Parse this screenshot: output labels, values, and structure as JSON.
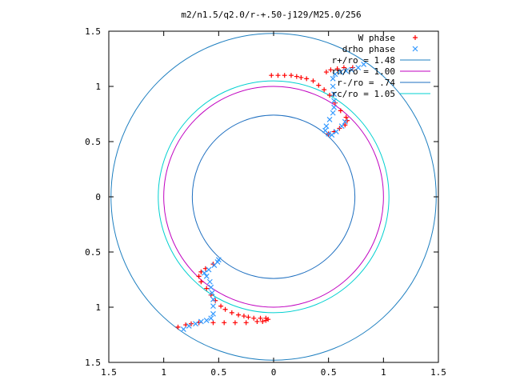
{
  "chart_data": {
    "type": "scatter",
    "title": "m2/n1.5/q2.0/r-+.50-j129/M25.0/256",
    "xlim": [
      -1.5,
      1.5
    ],
    "ylim": [
      -1.5,
      1.5
    ],
    "x_ticks": [
      -1.5,
      -1,
      -0.5,
      0,
      0.5,
      1,
      1.5
    ],
    "y_ticks": [
      -1.5,
      -1,
      -0.5,
      0,
      0.5,
      1,
      1.5
    ],
    "x_tick_labels": [
      "1.5",
      "1",
      "0.5",
      "0",
      "0.5",
      "1",
      "1.5"
    ],
    "y_tick_labels": [
      "1.5",
      "1",
      "0.5",
      "0",
      "0.5",
      "1",
      "1.5"
    ],
    "grid": false,
    "legend_position": "top-right",
    "series": [
      {
        "name": "W phase",
        "kind": "points",
        "marker": "plus",
        "color": "#ff0000",
        "points": [
          [
            -0.02,
            1.1
          ],
          [
            0.04,
            1.1
          ],
          [
            0.1,
            1.1
          ],
          [
            0.16,
            1.1
          ],
          [
            0.21,
            1.09
          ],
          [
            0.25,
            1.08
          ],
          [
            0.3,
            1.07
          ],
          [
            0.36,
            1.05
          ],
          [
            0.41,
            1.01
          ],
          [
            0.46,
            0.97
          ],
          [
            0.51,
            0.92
          ],
          [
            0.56,
            0.85
          ],
          [
            0.61,
            0.78
          ],
          [
            0.66,
            0.72
          ],
          [
            0.67,
            0.69
          ],
          [
            0.65,
            0.65
          ],
          [
            0.6,
            0.62
          ],
          [
            0.55,
            0.59
          ],
          [
            0.5,
            0.57
          ],
          [
            -0.05,
            -1.11
          ],
          [
            -0.07,
            -1.1
          ],
          [
            -0.12,
            -1.1
          ],
          [
            -0.18,
            -1.1
          ],
          [
            -0.23,
            -1.09
          ],
          [
            -0.27,
            -1.08
          ],
          [
            -0.32,
            -1.07
          ],
          [
            -0.38,
            -1.05
          ],
          [
            -0.44,
            -1.02
          ],
          [
            -0.48,
            -0.99
          ],
          [
            -0.53,
            -0.94
          ],
          [
            -0.57,
            -0.89
          ],
          [
            -0.61,
            -0.83
          ],
          [
            -0.66,
            -0.77
          ],
          [
            -0.68,
            -0.72
          ],
          [
            -0.66,
            -0.68
          ],
          [
            -0.62,
            -0.65
          ],
          [
            -0.55,
            -0.61
          ],
          [
            -0.55,
            -1.14
          ],
          [
            -0.45,
            -1.14
          ],
          [
            -0.35,
            -1.14
          ],
          [
            -0.25,
            -1.14
          ],
          [
            -0.15,
            -1.13
          ],
          [
            -0.1,
            -1.13
          ],
          [
            -0.07,
            -1.12
          ],
          [
            -0.68,
            -1.14
          ],
          [
            -0.75,
            -1.15
          ],
          [
            -0.8,
            -1.16
          ],
          [
            -0.87,
            -1.18
          ],
          [
            0.72,
            1.17
          ],
          [
            0.64,
            1.17
          ],
          [
            0.58,
            1.16
          ],
          [
            0.52,
            1.15
          ],
          [
            0.48,
            1.13
          ]
        ]
      },
      {
        "name": "drho phase",
        "kind": "points",
        "marker": "cross",
        "color": "#3399ff",
        "points": [
          [
            0.82,
            1.2
          ],
          [
            0.77,
            1.17
          ],
          [
            0.71,
            1.15
          ],
          [
            0.66,
            1.14
          ],
          [
            0.61,
            1.13
          ],
          [
            0.56,
            1.11
          ],
          [
            0.54,
            1.07
          ],
          [
            0.54,
            1.0
          ],
          [
            0.55,
            0.93
          ],
          [
            0.55,
            0.87
          ],
          [
            0.55,
            0.81
          ],
          [
            0.54,
            0.76
          ],
          [
            0.51,
            0.7
          ],
          [
            0.48,
            0.64
          ],
          [
            0.47,
            0.6
          ],
          [
            0.5,
            0.57
          ],
          [
            0.53,
            0.56
          ],
          [
            0.57,
            0.59
          ],
          [
            0.62,
            0.64
          ],
          [
            0.65,
            0.68
          ],
          [
            -0.82,
            -1.2
          ],
          [
            -0.77,
            -1.17
          ],
          [
            -0.71,
            -1.15
          ],
          [
            -0.66,
            -1.13
          ],
          [
            -0.61,
            -1.12
          ],
          [
            -0.57,
            -1.1
          ],
          [
            -0.55,
            -1.06
          ],
          [
            -0.55,
            -0.99
          ],
          [
            -0.55,
            -0.93
          ],
          [
            -0.56,
            -0.87
          ],
          [
            -0.57,
            -0.82
          ],
          [
            -0.58,
            -0.77
          ],
          [
            -0.61,
            -0.72
          ],
          [
            -0.63,
            -0.69
          ],
          [
            -0.59,
            -0.66
          ],
          [
            -0.54,
            -0.62
          ],
          [
            -0.51,
            -0.59
          ],
          [
            -0.5,
            -0.57
          ]
        ]
      },
      {
        "name": "r+/ro = 1.48",
        "kind": "circle",
        "radius": 1.48,
        "color": "#1e7fc0"
      },
      {
        "name": "rn/ro = 1.00",
        "kind": "circle",
        "radius": 1.0,
        "color": "#c000c0"
      },
      {
        "name": "r-/ro = .74",
        "kind": "circle",
        "radius": 0.74,
        "color": "#1e6fc0"
      },
      {
        "name": "rc/ro = 1.05",
        "kind": "circle",
        "radius": 1.05,
        "color": "#00d0d0"
      }
    ]
  }
}
